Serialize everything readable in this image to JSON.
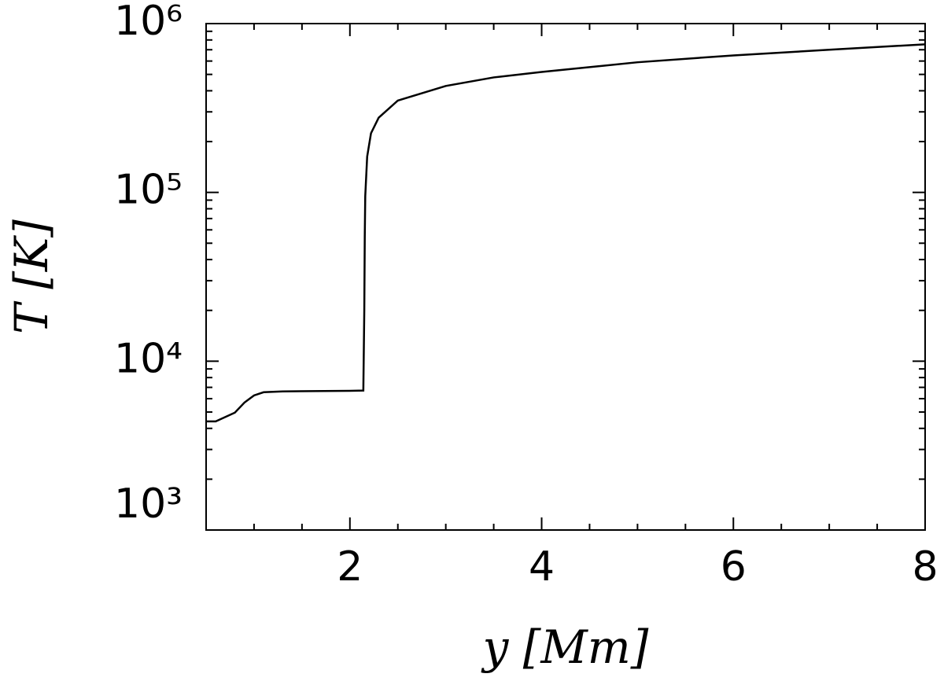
{
  "chart_data": {
    "type": "line",
    "x_label": "y [Mm]",
    "y_label": "T [K]",
    "y_scale": "log",
    "color": "#000000",
    "x": [
      0.5,
      0.6,
      0.8,
      0.9,
      1.0,
      1.1,
      1.3,
      1.6,
      2.0,
      2.14,
      2.15,
      2.155,
      2.16,
      2.18,
      2.22,
      2.3,
      2.5,
      3.0,
      3.5,
      4.0,
      5.0,
      6.0,
      7.0,
      8.0
    ],
    "series": [
      {
        "values": [
          4400,
          4400,
          4960,
          5690,
          6270,
          6550,
          6620,
          6650,
          6680,
          6700,
          20000,
          55000,
          95000,
          163000,
          224000,
          277000,
          350000,
          427000,
          480000,
          517000,
          590000,
          648000,
          700000,
          754000
        ]
      }
    ],
    "xlim": [
      0.5,
      8
    ],
    "xticks": [
      2,
      4,
      6,
      8
    ],
    "xminorticks": [
      1,
      1.5,
      2.5,
      3,
      3.5,
      4.5,
      5,
      5.5,
      6.5,
      7,
      7.5
    ],
    "ylim": [
      1000,
      1000000
    ],
    "yticks": [
      {
        "value": 1000,
        "label": "10³"
      },
      {
        "value": 10000,
        "label": "10⁴"
      },
      {
        "value": 100000,
        "label": "10⁵"
      },
      {
        "value": 1000000,
        "label": "10⁶"
      }
    ],
    "yminorticks": [
      2000,
      3000,
      4000,
      5000,
      6000,
      7000,
      8000,
      9000,
      20000,
      30000,
      40000,
      50000,
      60000,
      70000,
      80000,
      90000,
      200000,
      300000,
      400000,
      500000,
      600000,
      700000,
      800000,
      900000
    ]
  }
}
